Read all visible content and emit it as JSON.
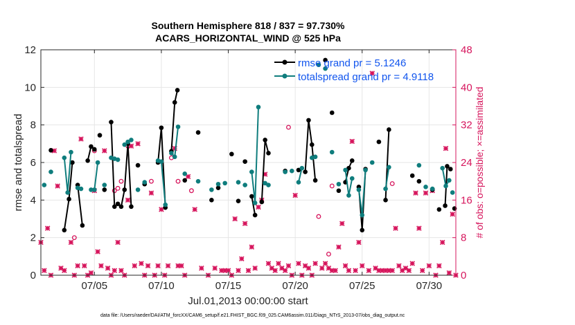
{
  "chart_data": {
    "type": "line",
    "title": "Southern Hemisphere 818 / 837 = 97.730%",
    "subtitle": "ACARS_HORIZONTAL_WIND @ 525 hPa",
    "xlabel": "Jul.01,2013 00:00:00 start",
    "ylabel_left": "rmse and totalspread",
    "ylabel_right": "# of obs: o=possible; ×=assimilated",
    "footer": "data file: /Users/raeder/DAI/ATM_forcXX/CAM6_setup/f.e21.FHIST_BGC.f09_025.CAM6assim.011/Diags_NTrS_2013-07/obs_diag_output.nc",
    "xlim": [
      1.0,
      32.0
    ],
    "ylim_left": [
      0,
      12
    ],
    "ylim_right": [
      0,
      48
    ],
    "x_ticks": [
      5,
      10,
      15,
      20,
      25,
      30
    ],
    "x_tick_labels": [
      "07/05",
      "07/10",
      "07/15",
      "07/20",
      "07/25",
      "07/30"
    ],
    "y_left_ticks": [
      0,
      2,
      4,
      6,
      8,
      10,
      12
    ],
    "y_right_ticks": [
      0,
      8,
      16,
      24,
      32,
      40,
      48
    ],
    "legend_position": "top-right",
    "grid": true,
    "series": [
      {
        "name": "rmse grand pr = 5.1246",
        "color": "#000000",
        "axis": "left",
        "segments": [
          [
            [
              1.75,
              6.65
            ]
          ],
          [
            [
              2.75,
              2.4
            ],
            [
              3.1,
              4.05
            ],
            [
              3.35,
              6.0
            ]
          ],
          [
            [
              3.75,
              4.8
            ],
            [
              4.1,
              2.65
            ]
          ],
          [
            [
              4.5,
              6.1
            ],
            [
              4.75,
              6.85
            ],
            [
              5.0,
              6.7
            ]
          ],
          [
            [
              5.4,
              7.45
            ]
          ],
          [
            [
              5.75,
              4.55
            ]
          ],
          [
            [
              6.25,
              8.15
            ],
            [
              6.5,
              3.65
            ],
            [
              6.75,
              3.8
            ],
            [
              7.0,
              3.65
            ],
            [
              7.25,
              4.55
            ],
            [
              7.5,
              7.0
            ],
            [
              7.75,
              3.65
            ]
          ],
          [
            [
              8.25,
              5.85
            ]
          ],
          [
            [
              8.75,
              4.85
            ]
          ],
          [
            [
              9.75,
              6.0
            ],
            [
              10.0,
              7.85
            ],
            [
              10.3,
              3.6
            ]
          ],
          [
            [
              10.75,
              6.6
            ],
            [
              11.0,
              9.2
            ],
            [
              11.2,
              9.85
            ]
          ],
          [
            [
              11.75,
              5.05
            ]
          ],
          [
            [
              12.75,
              7.6
            ]
          ],
          [
            [
              13.75,
              4.0
            ]
          ],
          [
            [
              14.25,
              4.65
            ]
          ],
          [
            [
              15.25,
              6.45
            ]
          ],
          [
            [
              15.75,
              3.95
            ]
          ],
          [
            [
              16.25,
              6.05
            ]
          ],
          [
            [
              16.75,
              4.2
            ],
            [
              17.0,
              3.2
            ]
          ],
          [
            [
              17.5,
              3.9
            ],
            [
              17.75,
              7.2
            ],
            [
              18.0,
              6.5
            ]
          ],
          [
            [
              19.25,
              5.55
            ]
          ],
          [
            [
              20.25,
              5.6
            ]
          ],
          [
            [
              20.75,
              5.5
            ],
            [
              21.0,
              8.25
            ],
            [
              21.25,
              6.95
            ],
            [
              21.5,
              5.05
            ]
          ],
          [
            [
              22.25,
              11.45
            ]
          ],
          [
            [
              22.75,
              8.65
            ]
          ],
          [
            [
              23.25,
              4.5
            ]
          ],
          [
            [
              23.75,
              4.95
            ],
            [
              24.0,
              5.7
            ],
            [
              24.25,
              6.1
            ]
          ],
          [
            [
              24.75,
              4.7
            ],
            [
              25.0,
              2.4
            ],
            [
              25.25,
              5.65
            ]
          ],
          [
            [
              26.25,
              7.1
            ]
          ],
          [
            [
              26.75,
              4.0
            ],
            [
              27.0,
              7.75
            ]
          ],
          [
            [
              28.75,
              5.3
            ]
          ],
          [
            [
              29.25,
              5.0
            ]
          ],
          [
            [
              30.25,
              4.55
            ]
          ],
          [
            [
              30.75,
              3.5
            ]
          ],
          [
            [
              31.2,
              3.7
            ],
            [
              31.35,
              5.8
            ],
            [
              31.6,
              5.65
            ]
          ],
          [
            [
              31.9,
              3.55
            ]
          ]
        ]
      },
      {
        "name": "totalspread grand pr = 4.9118",
        "color": "#0f7d7d",
        "axis": "left",
        "segments": [
          [
            [
              1.25,
              4.8
            ]
          ],
          [
            [
              1.75,
              5.5
            ]
          ],
          [
            [
              2.75,
              6.25
            ],
            [
              3.0,
              4.4
            ],
            [
              3.25,
              6.55
            ]
          ],
          [
            [
              3.75,
              4.65
            ],
            [
              4.0,
              4.6
            ]
          ],
          [
            [
              4.75,
              4.55
            ],
            [
              5.0,
              4.55
            ],
            [
              5.25,
              6.0
            ]
          ],
          [
            [
              5.75,
              4.8
            ]
          ],
          [
            [
              6.25,
              6.25
            ],
            [
              6.5,
              6.2
            ],
            [
              6.75,
              6.15
            ]
          ],
          [
            [
              7.25,
              6.95
            ],
            [
              7.5,
              7.1
            ],
            [
              7.75,
              7.2
            ]
          ],
          [
            [
              8.25,
              4.55
            ]
          ],
          [
            [
              8.75,
              4.95
            ]
          ],
          [
            [
              9.75,
              6.1
            ],
            [
              10.0,
              6.05
            ],
            [
              10.3,
              3.75
            ]
          ],
          [
            [
              10.75,
              6.5
            ],
            [
              11.0,
              6.3
            ],
            [
              11.25,
              7.9
            ]
          ],
          [
            [
              11.75,
              5.4
            ]
          ],
          [
            [
              12.75,
              5.0
            ]
          ],
          [
            [
              13.75,
              4.55
            ]
          ],
          [
            [
              14.25,
              4.85
            ]
          ],
          [
            [
              14.75,
              4.9
            ]
          ],
          [
            [
              15.75,
              4.95
            ]
          ],
          [
            [
              16.25,
              4.8
            ]
          ],
          [
            [
              16.75,
              5.5
            ],
            [
              17.0,
              3.85
            ],
            [
              17.25,
              8.95
            ]
          ],
          [
            [
              17.75,
              4.9
            ],
            [
              18.0,
              4.8
            ]
          ],
          [
            [
              19.25,
              5.5
            ]
          ],
          [
            [
              19.75,
              5.55
            ]
          ],
          [
            [
              20.25,
              4.95
            ],
            [
              20.5,
              5.7
            ]
          ],
          [
            [
              21.25,
              6.25
            ],
            [
              21.5,
              6.3
            ]
          ],
          [
            [
              21.75,
              11.2
            ]
          ],
          [
            [
              22.25,
              11.0
            ]
          ],
          [
            [
              22.75,
              6.55
            ]
          ],
          [
            [
              23.25,
              4.85
            ]
          ],
          [
            [
              23.75,
              5.6
            ],
            [
              24.0,
              4.25
            ],
            [
              24.25,
              5.15
            ]
          ],
          [
            [
              24.75,
              4.55
            ],
            [
              25.0,
              3.2
            ],
            [
              25.25,
              5.6
            ]
          ],
          [
            [
              25.75,
              6.0
            ]
          ],
          [
            [
              26.75,
              4.6
            ],
            [
              27.0,
              5.75
            ]
          ],
          [
            [
              29.25,
              5.85
            ]
          ],
          [
            [
              29.75,
              4.7
            ]
          ],
          [
            [
              30.25,
              4.6
            ]
          ],
          [
            [
              31.0,
              5.7
            ],
            [
              31.25,
              4.75
            ],
            [
              31.5,
              5.05
            ]
          ],
          [
            [
              31.75,
              4.4
            ]
          ]
        ]
      }
    ],
    "obs_series": [
      {
        "name": "possible",
        "marker": "o",
        "color": "#d6155c",
        "axis": "right",
        "points": [
          [
            3.5,
            8.0
          ],
          [
            5.0,
            26.5
          ],
          [
            6.5,
            18.0
          ],
          [
            6.75,
            18.5
          ],
          [
            7.0,
            20.0
          ],
          [
            7.5,
            27.5
          ],
          [
            9.25,
            20.0
          ],
          [
            10.75,
            25.0
          ],
          [
            11.25,
            20.0
          ],
          [
            12.25,
            18.0
          ],
          [
            19.5,
            31.5
          ],
          [
            21.75,
            12.5
          ],
          [
            22.75,
            19.0
          ],
          [
            22.5,
            4.5
          ],
          [
            27.25,
            19.5
          ]
        ]
      },
      {
        "name": "assimilated",
        "marker": "x",
        "color": "#d6155c",
        "axis": "right",
        "points": [
          [
            1.0,
            7.0
          ],
          [
            1.25,
            1.0
          ],
          [
            1.5,
            10.0
          ],
          [
            1.75,
            0
          ],
          [
            2.0,
            26.5
          ],
          [
            2.25,
            19.0
          ],
          [
            2.5,
            1.5
          ],
          [
            2.75,
            1.0
          ],
          [
            3.25,
            7.0
          ],
          [
            3.5,
            0
          ],
          [
            3.75,
            2.0
          ],
          [
            4.0,
            29.0
          ],
          [
            4.25,
            2.0
          ],
          [
            4.5,
            0
          ],
          [
            4.75,
            0.5
          ],
          [
            5.0,
            18.0
          ],
          [
            5.25,
            5.0
          ],
          [
            5.5,
            2.0
          ],
          [
            5.75,
            26.5
          ],
          [
            6.0,
            1.5
          ],
          [
            6.25,
            0
          ],
          [
            6.5,
            1.0
          ],
          [
            6.75,
            7.0
          ],
          [
            7.0,
            1.0
          ],
          [
            7.25,
            0
          ],
          [
            7.5,
            16.0
          ],
          [
            7.75,
            27.5
          ],
          [
            8.0,
            2.0
          ],
          [
            8.25,
            28.0
          ],
          [
            8.5,
            2.5
          ],
          [
            8.75,
            0
          ],
          [
            9.0,
            2.0
          ],
          [
            9.25,
            17.5
          ],
          [
            9.5,
            0
          ],
          [
            9.75,
            2.0
          ],
          [
            10.0,
            14.0
          ],
          [
            10.25,
            0
          ],
          [
            10.5,
            2.0
          ],
          [
            11.0,
            27.0
          ],
          [
            11.25,
            2.0
          ],
          [
            11.5,
            2.0
          ],
          [
            11.75,
            0
          ],
          [
            12.0,
            21.0
          ],
          [
            12.5,
            14.0
          ],
          [
            13.0,
            1.5
          ],
          [
            13.5,
            0
          ],
          [
            14.0,
            1.5
          ],
          [
            14.5,
            1.0
          ],
          [
            14.75,
            1.0
          ],
          [
            15.0,
            1.0
          ],
          [
            15.25,
            0
          ],
          [
            15.5,
            12.0
          ],
          [
            15.75,
            1.0
          ],
          [
            16.0,
            3.5
          ],
          [
            16.25,
            11.0
          ],
          [
            16.5,
            1.0
          ],
          [
            16.75,
            6.0
          ],
          [
            17.0,
            1.5
          ],
          [
            17.25,
            14.5
          ],
          [
            17.5,
            16.0
          ],
          [
            17.75,
            21.5
          ],
          [
            18.0,
            2.5
          ],
          [
            18.25,
            1.5
          ],
          [
            18.5,
            1.0
          ],
          [
            18.75,
            2.5
          ],
          [
            19.0,
            1.5
          ],
          [
            19.25,
            1.0
          ],
          [
            19.5,
            2.0
          ],
          [
            19.75,
            0
          ],
          [
            20.0,
            17.0
          ],
          [
            20.25,
            2.5
          ],
          [
            20.5,
            0
          ],
          [
            20.75,
            2.0
          ],
          [
            21.0,
            1.5
          ],
          [
            21.25,
            0
          ],
          [
            21.5,
            2.5
          ],
          [
            22.0,
            1.5
          ],
          [
            22.25,
            2.5
          ],
          [
            22.5,
            1.5
          ],
          [
            22.75,
            1.0
          ],
          [
            23.0,
            1.0
          ],
          [
            23.25,
            6.0
          ],
          [
            23.5,
            11.0
          ],
          [
            23.75,
            2.0
          ],
          [
            24.0,
            1.0
          ],
          [
            24.25,
            28.5
          ],
          [
            24.5,
            1.0
          ],
          [
            24.75,
            7.0
          ],
          [
            25.0,
            2.0
          ],
          [
            25.5,
            1.0
          ],
          [
            25.75,
            43.0
          ],
          [
            26.0,
            1.5
          ],
          [
            26.25,
            1.0
          ],
          [
            26.5,
            1.0
          ],
          [
            26.75,
            1.0
          ],
          [
            27.0,
            1.0
          ],
          [
            27.25,
            1.0
          ],
          [
            27.5,
            10.0
          ],
          [
            27.75,
            2.0
          ],
          [
            28.0,
            1.0
          ],
          [
            28.25,
            1.5
          ],
          [
            28.5,
            1.0
          ],
          [
            28.75,
            2.5
          ],
          [
            29.0,
            17.5
          ],
          [
            29.25,
            10.0
          ],
          [
            29.5,
            1.0
          ],
          [
            29.75,
            17.5
          ],
          [
            30.0,
            2.0
          ],
          [
            30.25,
            18.0
          ],
          [
            30.5,
            0
          ],
          [
            30.75,
            2.0
          ],
          [
            31.0,
            7.0
          ],
          [
            31.25,
            27.0
          ],
          [
            31.5,
            0.5
          ],
          [
            31.75,
            13.0
          ],
          [
            32.0,
            0
          ]
        ]
      }
    ]
  }
}
